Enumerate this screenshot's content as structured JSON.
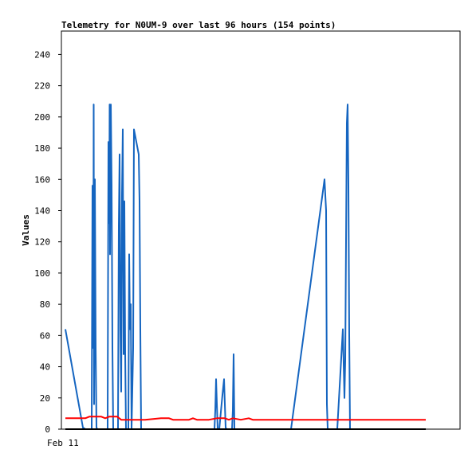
{
  "chart_data": {
    "type": "line",
    "title": "Telemetry for N0UM-9 over last 96 hours (154 points)",
    "xlabel": "",
    "ylabel": "Values",
    "x_tick_labels": [
      "Feb 11"
    ],
    "ylim": [
      0,
      255
    ],
    "yticks": [
      0,
      20,
      40,
      60,
      80,
      100,
      120,
      140,
      160,
      180,
      200,
      220,
      240
    ],
    "grid": false,
    "legend": "none",
    "series": [
      {
        "color": "#1565c0",
        "points": [
          [
            0,
            64
          ],
          [
            22,
            1
          ],
          [
            25,
            0
          ],
          [
            33,
            0
          ],
          [
            34,
            156
          ],
          [
            35,
            52
          ],
          [
            35.5,
            208
          ],
          [
            36,
            16
          ],
          [
            37,
            160
          ],
          [
            38,
            52
          ],
          [
            39,
            1
          ],
          [
            40,
            0
          ],
          [
            53,
            0
          ],
          [
            54,
            184
          ],
          [
            55,
            132
          ],
          [
            55.5,
            208
          ],
          [
            56,
            112
          ],
          [
            57,
            208
          ],
          [
            58,
            156
          ],
          [
            59,
            52
          ],
          [
            60,
            0
          ],
          [
            66,
            0
          ],
          [
            67,
            130
          ],
          [
            68,
            176
          ],
          [
            69,
            64
          ],
          [
            70,
            24
          ],
          [
            71,
            150
          ],
          [
            72,
            192
          ],
          [
            73,
            48
          ],
          [
            74,
            146
          ],
          [
            75,
            48
          ],
          [
            76,
            0
          ],
          [
            79,
            0
          ],
          [
            80,
            112
          ],
          [
            81,
            64
          ],
          [
            82,
            80
          ],
          [
            83,
            0
          ],
          [
            85,
            52
          ],
          [
            86,
            192
          ],
          [
            92,
            176
          ],
          [
            93,
            146
          ],
          [
            94,
            64
          ],
          [
            95,
            0
          ],
          [
            187,
            0
          ],
          [
            188,
            12
          ],
          [
            189,
            32
          ],
          [
            190,
            16
          ],
          [
            191,
            0
          ],
          [
            193,
            0
          ],
          [
            197,
            22
          ],
          [
            199,
            32
          ],
          [
            200,
            16
          ],
          [
            201,
            1
          ],
          [
            202,
            0
          ],
          [
            209,
            0
          ],
          [
            210,
            12
          ],
          [
            211,
            48
          ],
          [
            212,
            0
          ],
          [
            283,
            0
          ],
          [
            325,
            160
          ],
          [
            327,
            140
          ],
          [
            328,
            16
          ],
          [
            329,
            0
          ],
          [
            341,
            0
          ],
          [
            348,
            64
          ],
          [
            350,
            20
          ],
          [
            351,
            44
          ],
          [
            352,
            120
          ],
          [
            353,
            196
          ],
          [
            354,
            208
          ],
          [
            355,
            156
          ],
          [
            356,
            60
          ],
          [
            357,
            0
          ]
        ]
      },
      {
        "color": "#ff0000",
        "points": [
          [
            0,
            7
          ],
          [
            25,
            7
          ],
          [
            30,
            8
          ],
          [
            40,
            8
          ],
          [
            45,
            8
          ],
          [
            50,
            7
          ],
          [
            55,
            8
          ],
          [
            65,
            8
          ],
          [
            70,
            6
          ],
          [
            80,
            6
          ],
          [
            100,
            6
          ],
          [
            120,
            7
          ],
          [
            130,
            7
          ],
          [
            135,
            6
          ],
          [
            155,
            6
          ],
          [
            160,
            7
          ],
          [
            165,
            6
          ],
          [
            180,
            6
          ],
          [
            190,
            7
          ],
          [
            200,
            7
          ],
          [
            205,
            6
          ],
          [
            210,
            7
          ],
          [
            220,
            6
          ],
          [
            230,
            7
          ],
          [
            235,
            6
          ],
          [
            260,
            6
          ],
          [
            300,
            6
          ],
          [
            360,
            6
          ],
          [
            452,
            6
          ]
        ]
      },
      {
        "color": "#000000",
        "points": [
          [
            0,
            0
          ],
          [
            452,
            0
          ]
        ]
      }
    ]
  }
}
